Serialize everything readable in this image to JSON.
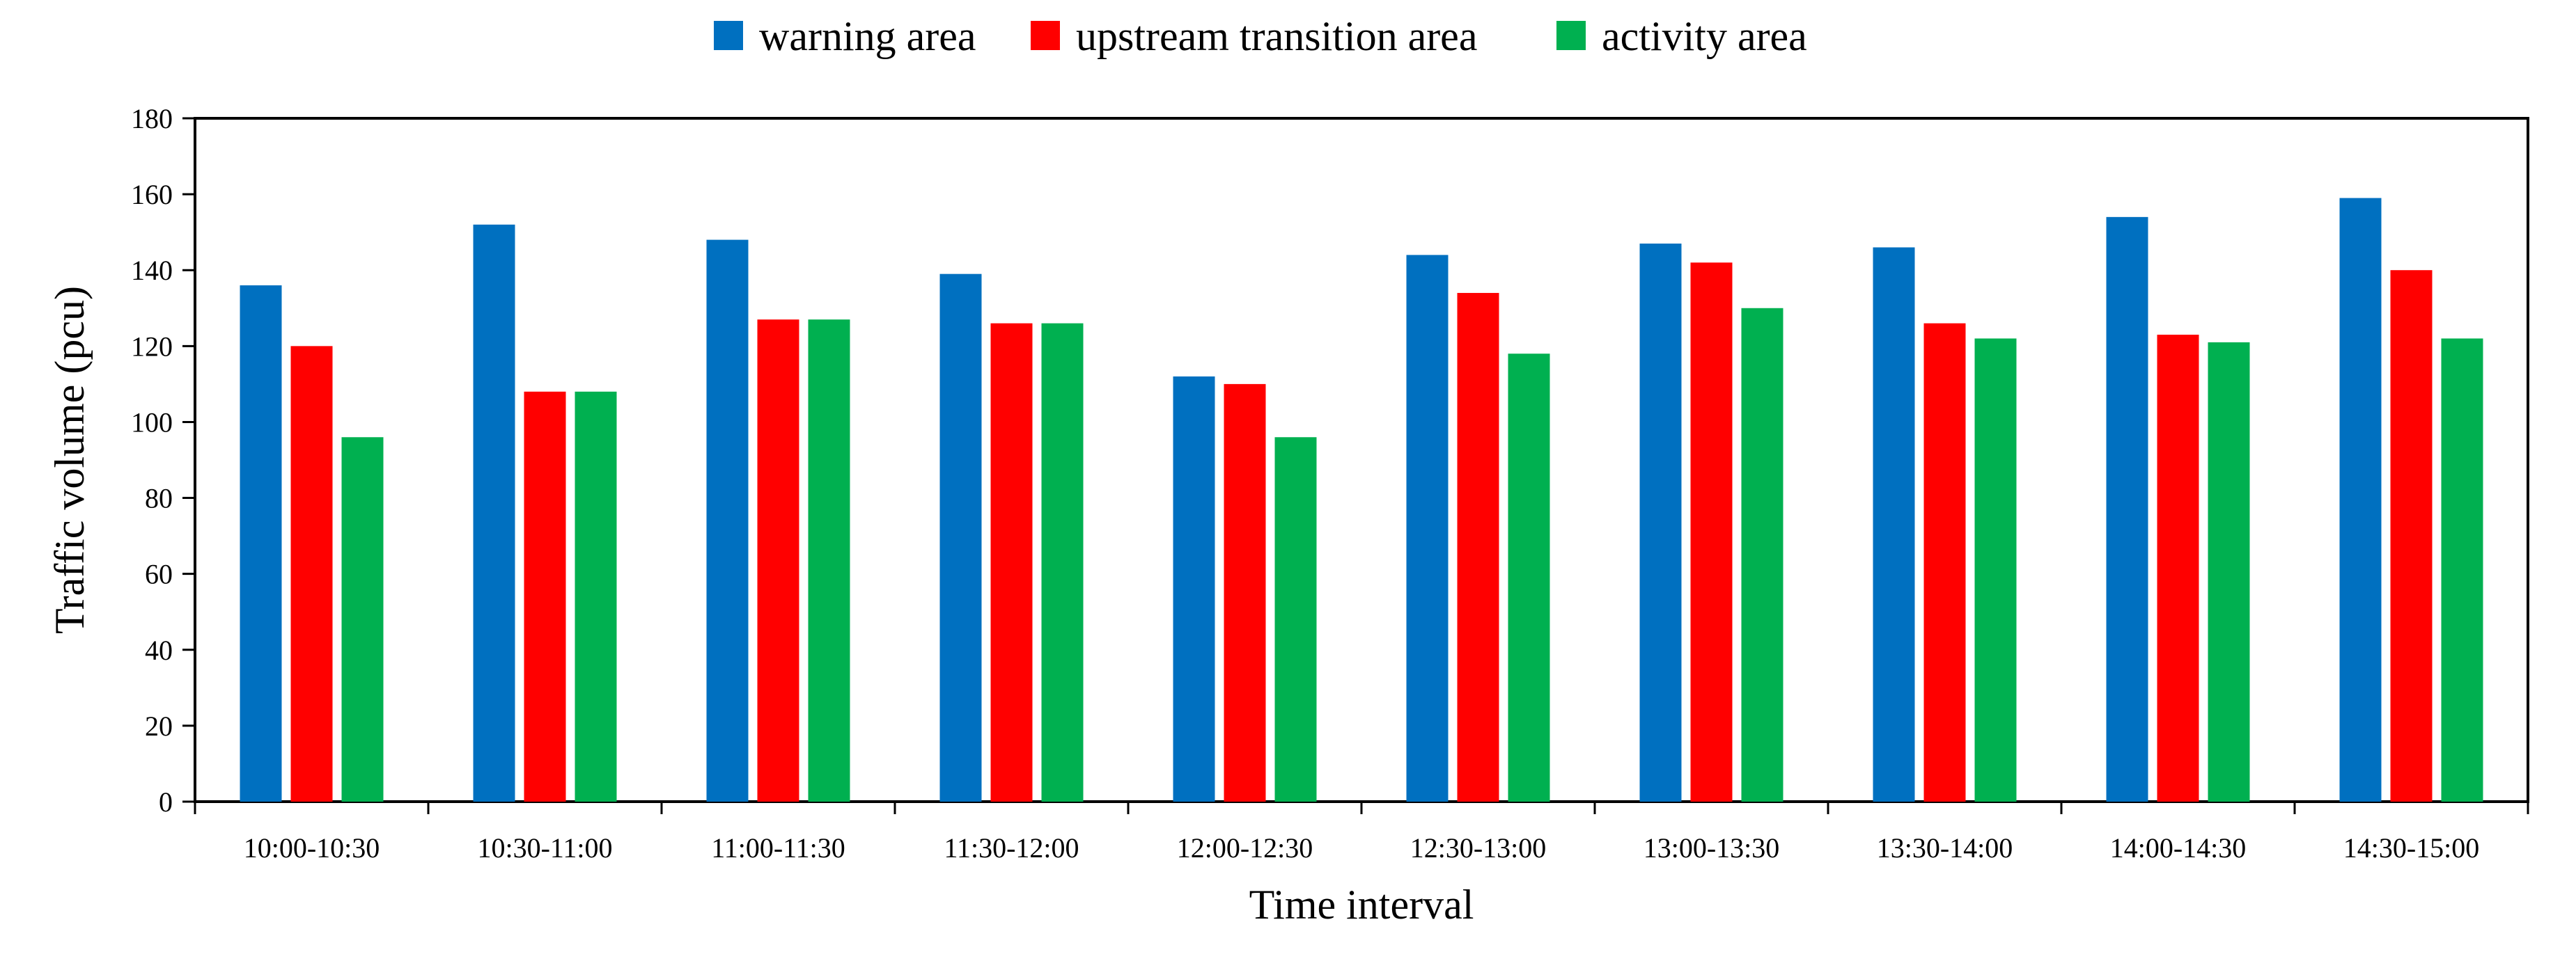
{
  "chart_data": {
    "type": "bar",
    "title": "",
    "xlabel": "Time interval",
    "ylabel": "Traffic volume (pcu)",
    "ylim": [
      0,
      180
    ],
    "yticks": [
      0,
      20,
      40,
      60,
      80,
      100,
      120,
      140,
      160,
      180
    ],
    "categories": [
      "10:00-10:30",
      "10:30-11:00",
      "11:00-11:30",
      "11:30-12:00",
      "12:00-12:30",
      "12:30-13:00",
      "13:00-13:30",
      "13:30-14:00",
      "14:00-14:30",
      "14:30-15:00"
    ],
    "series": [
      {
        "name": "warning area",
        "color": "#0070C0",
        "values": [
          136,
          152,
          148,
          139,
          112,
          144,
          147,
          146,
          154,
          159
        ]
      },
      {
        "name": "upstream transition area",
        "color": "#FF0000",
        "values": [
          120,
          108,
          127,
          126,
          110,
          134,
          142,
          126,
          123,
          140
        ]
      },
      {
        "name": "activity area",
        "color": "#00B050",
        "values": [
          96,
          108,
          127,
          126,
          96,
          118,
          130,
          122,
          121,
          122
        ]
      }
    ],
    "legend_position": "top-center",
    "grid": false
  }
}
